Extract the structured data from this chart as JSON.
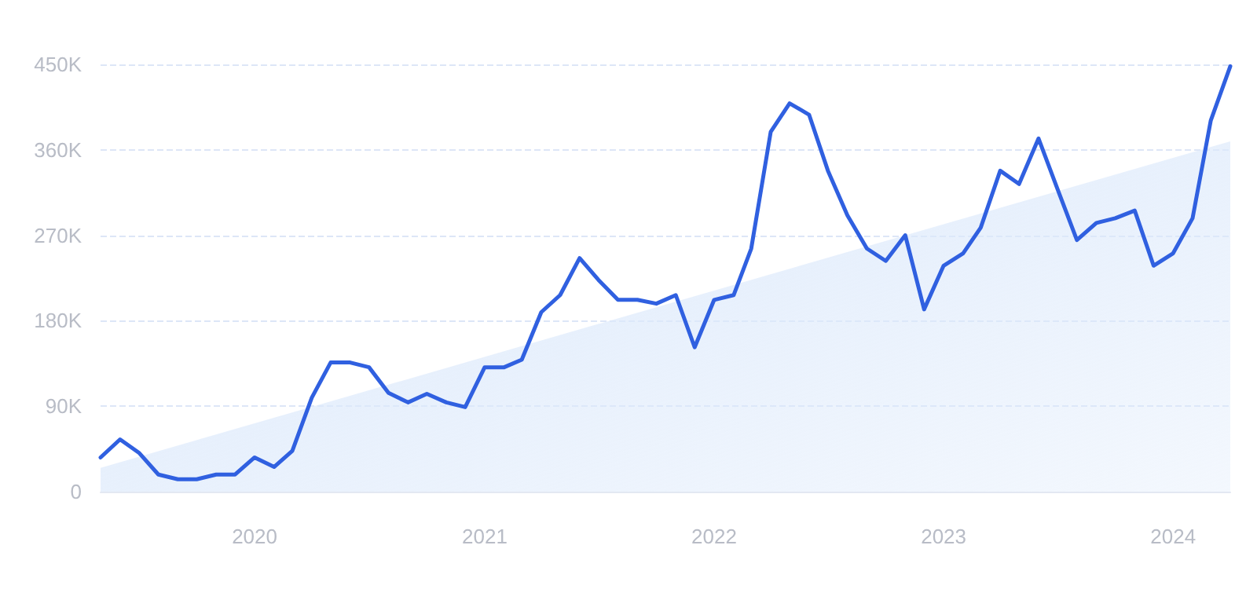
{
  "chart_data": {
    "type": "line",
    "x": [
      "2019-05",
      "2019-06",
      "2019-07",
      "2019-08",
      "2019-09",
      "2019-10",
      "2019-11",
      "2019-12",
      "2020-01",
      "2020-02",
      "2020-03",
      "2020-04",
      "2020-05",
      "2020-06",
      "2020-07",
      "2020-08",
      "2020-09",
      "2020-10",
      "2020-11",
      "2020-12",
      "2021-01",
      "2021-02",
      "2021-03",
      "2021-04",
      "2021-05",
      "2021-06",
      "2021-07",
      "2021-08",
      "2021-09",
      "2021-10",
      "2021-11",
      "2021-12",
      "2022-01",
      "2022-02",
      "2022-03",
      "2022-04",
      "2022-05",
      "2022-06",
      "2022-07",
      "2022-08",
      "2022-09",
      "2022-10",
      "2022-11",
      "2022-12",
      "2023-01",
      "2023-02",
      "2023-03",
      "2023-04",
      "2023-05",
      "2023-06",
      "2023-07",
      "2023-08",
      "2023-09",
      "2023-10",
      "2023-11",
      "2023-12",
      "2024-01",
      "2024-02",
      "2024-03",
      "2024-04"
    ],
    "series": [
      {
        "type": "area",
        "color": "#dce9fb",
        "x": [
          "2019-05",
          "2024-04"
        ],
        "values": [
          25000,
          369000
        ]
      },
      {
        "color": "#3060e0",
        "values": [
          36000,
          55000,
          41000,
          18000,
          13000,
          13000,
          18000,
          18000,
          36000,
          26000,
          43000,
          99000,
          136000,
          136000,
          131000,
          104000,
          94000,
          103000,
          94000,
          89000,
          131000,
          131000,
          139000,
          189000,
          207000,
          246000,
          223000,
          202000,
          202000,
          198000,
          207000,
          152000,
          202000,
          207000,
          256000,
          379000,
          409000,
          397000,
          338000,
          291000,
          256000,
          243000,
          270000,
          192000,
          238000,
          251000,
          278000,
          338000,
          324000,
          372000,
          319000,
          265000,
          283000,
          288000,
          296000,
          238000,
          251000,
          288000,
          391000,
          448000
        ]
      }
    ],
    "xlim": [
      "2019-05",
      "2024-04"
    ],
    "xticks": [
      {
        "value": "2020-01",
        "label": "2020"
      },
      {
        "value": "2021-01",
        "label": "2021"
      },
      {
        "value": "2022-01",
        "label": "2022"
      },
      {
        "value": "2023-01",
        "label": "2023"
      },
      {
        "value": "2024-01",
        "label": "2024"
      }
    ],
    "ylim": [
      0,
      450000
    ],
    "yticks": [
      0,
      {
        "value": 90000,
        "label": "90K"
      },
      {
        "value": 180000,
        "label": "180K"
      },
      {
        "value": 270000,
        "label": "270K"
      },
      {
        "value": 360000,
        "label": "360K"
      },
      {
        "value": 450000,
        "label": "450K"
      }
    ],
    "grid": "y",
    "marker": "none",
    "line_style": "solid"
  }
}
